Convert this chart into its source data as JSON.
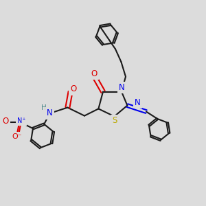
{
  "bg_color": "#dcdcdc",
  "bond_color": "#1a1a1a",
  "bond_width": 1.5,
  "atom_colors": {
    "N": "#0000ee",
    "O": "#dd0000",
    "S": "#bbaa00",
    "H": "#4d8888",
    "C": "#1a1a1a"
  },
  "figsize": [
    3.0,
    3.0
  ],
  "dpi": 100,
  "xlim": [
    0,
    10
  ],
  "ylim": [
    0,
    10
  ]
}
